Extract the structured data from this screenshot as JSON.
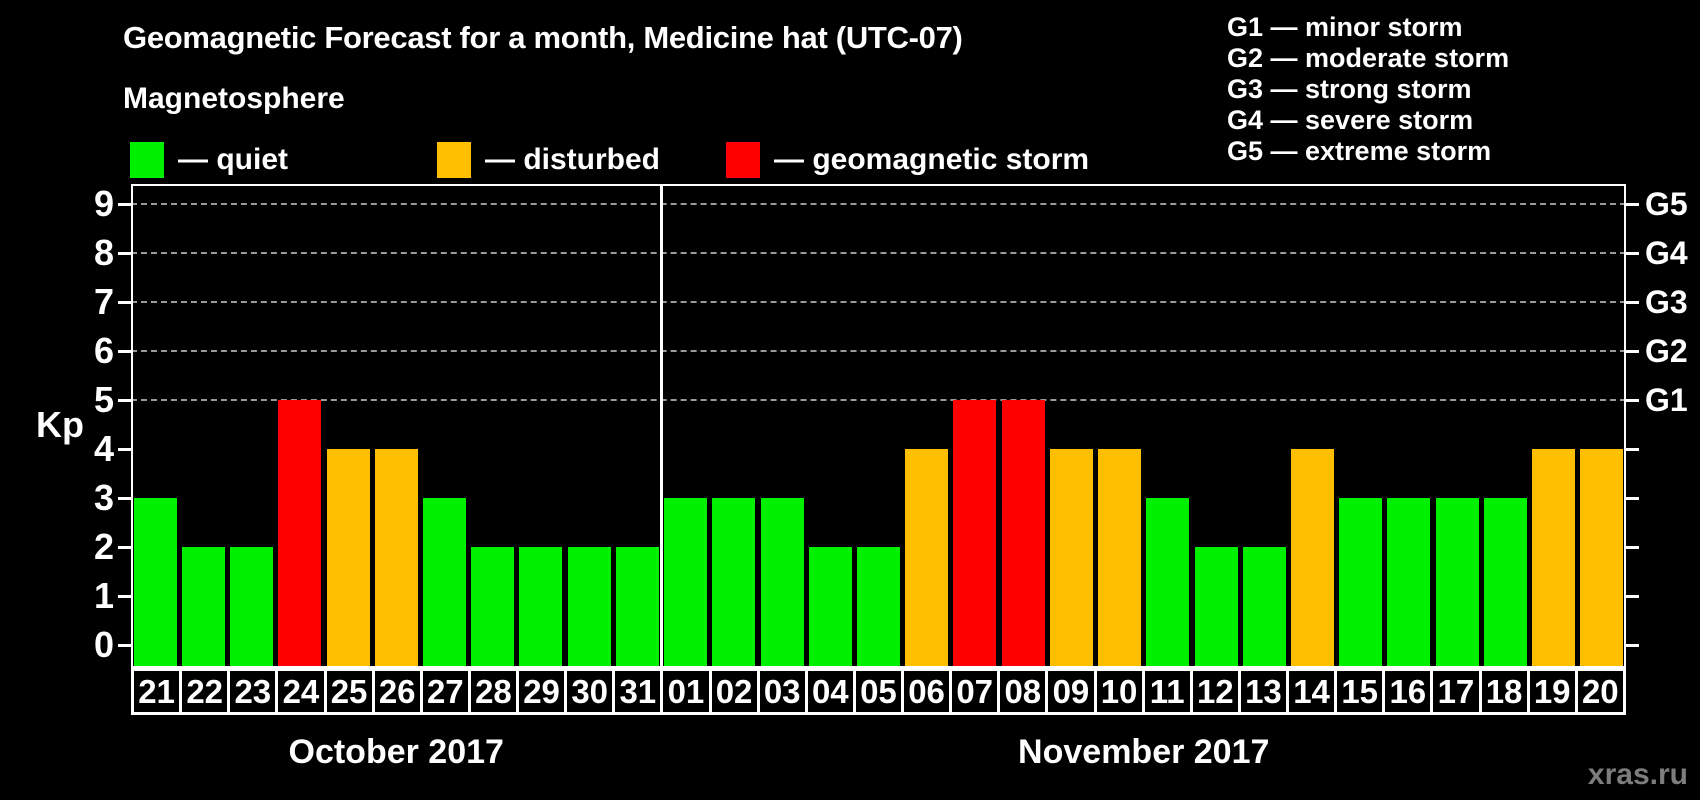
{
  "title": "Geomagnetic Forecast for a month, Medicine hat (UTC-07)",
  "subtitle": "Magnetosphere",
  "legend": {
    "items": [
      {
        "label": "— quiet",
        "status": "quiet",
        "color": "#00f000"
      },
      {
        "label": "— disturbed",
        "status": "disturbed",
        "color": "#ffbf00"
      },
      {
        "label": "— geomagnetic storm",
        "status": "storm",
        "color": "#ff0000"
      }
    ]
  },
  "storm_scale_legend": {
    "lines": [
      "G1 — minor storm",
      "G2 — moderate storm",
      "G3 — strong storm",
      "G4 — severe storm",
      "G5 — extreme storm"
    ]
  },
  "watermark": "xras.ru",
  "chart_data": {
    "type": "bar",
    "title": "Geomagnetic Forecast for a month, Medicine hat (UTC-07)",
    "ylabel": "Kp",
    "ylim": [
      0,
      9
    ],
    "yticks": [
      0,
      1,
      2,
      3,
      4,
      5,
      6,
      7,
      8,
      9
    ],
    "gridlines_at_kp": [
      5,
      6,
      7,
      8,
      9
    ],
    "grid": "dashed horizontal lines at Kp 5-9 only",
    "right_axis": [
      {
        "kp": 9,
        "label": "G5"
      },
      {
        "kp": 8,
        "label": "G4"
      },
      {
        "kp": 7,
        "label": "G3"
      },
      {
        "kp": 6,
        "label": "G2"
      },
      {
        "kp": 5,
        "label": "G1"
      }
    ],
    "colors": {
      "quiet": "#00f000",
      "disturbed": "#ffbf00",
      "storm": "#ff0000"
    },
    "months": [
      {
        "label": "October 2017",
        "days": [
          {
            "day": "21",
            "kp": 3,
            "status": "quiet"
          },
          {
            "day": "22",
            "kp": 2,
            "status": "quiet"
          },
          {
            "day": "23",
            "kp": 2,
            "status": "quiet"
          },
          {
            "day": "24",
            "kp": 5,
            "status": "storm"
          },
          {
            "day": "25",
            "kp": 4,
            "status": "disturbed"
          },
          {
            "day": "26",
            "kp": 4,
            "status": "disturbed"
          },
          {
            "day": "27",
            "kp": 3,
            "status": "quiet"
          },
          {
            "day": "28",
            "kp": 2,
            "status": "quiet"
          },
          {
            "day": "29",
            "kp": 2,
            "status": "quiet"
          },
          {
            "day": "30",
            "kp": 2,
            "status": "quiet"
          },
          {
            "day": "31",
            "kp": 2,
            "status": "quiet"
          }
        ]
      },
      {
        "label": "November 2017",
        "days": [
          {
            "day": "01",
            "kp": 3,
            "status": "quiet"
          },
          {
            "day": "02",
            "kp": 3,
            "status": "quiet"
          },
          {
            "day": "03",
            "kp": 3,
            "status": "quiet"
          },
          {
            "day": "04",
            "kp": 2,
            "status": "quiet"
          },
          {
            "day": "05",
            "kp": 2,
            "status": "quiet"
          },
          {
            "day": "06",
            "kp": 4,
            "status": "disturbed"
          },
          {
            "day": "07",
            "kp": 5,
            "status": "storm"
          },
          {
            "day": "08",
            "kp": 5,
            "status": "storm"
          },
          {
            "day": "09",
            "kp": 4,
            "status": "disturbed"
          },
          {
            "day": "10",
            "kp": 4,
            "status": "disturbed"
          },
          {
            "day": "11",
            "kp": 3,
            "status": "quiet"
          },
          {
            "day": "12",
            "kp": 2,
            "status": "quiet"
          },
          {
            "day": "13",
            "kp": 2,
            "status": "quiet"
          },
          {
            "day": "14",
            "kp": 4,
            "status": "disturbed"
          },
          {
            "day": "15",
            "kp": 3,
            "status": "quiet"
          },
          {
            "day": "16",
            "kp": 3,
            "status": "quiet"
          },
          {
            "day": "17",
            "kp": 3,
            "status": "quiet"
          },
          {
            "day": "18",
            "kp": 3,
            "status": "quiet"
          },
          {
            "day": "19",
            "kp": 4,
            "status": "disturbed"
          },
          {
            "day": "20",
            "kp": 4,
            "status": "disturbed"
          }
        ]
      }
    ]
  }
}
